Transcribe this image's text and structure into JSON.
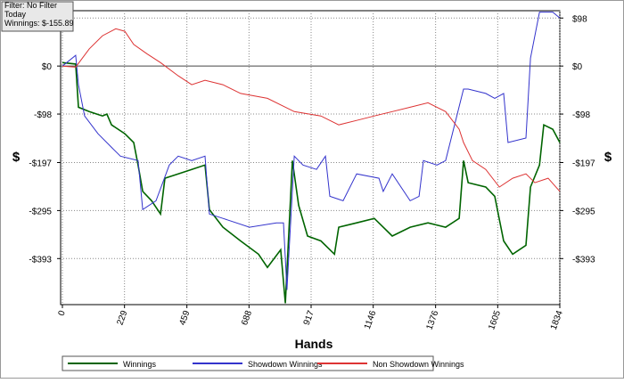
{
  "chart_data": {
    "type": "line",
    "info_box": [
      "Filter: No Filter",
      "Today",
      "Winnings: $-155.89"
    ],
    "x_label": "Hands",
    "y_label": "$",
    "xlim": [
      0,
      1834
    ],
    "xticks": [
      0,
      229,
      459,
      688,
      917,
      1146,
      1376,
      1605,
      1834
    ],
    "ylim": [
      -487,
      113
    ],
    "yticks": [
      {
        "value": 98,
        "label": "$98"
      },
      {
        "value": 0,
        "label": "$0"
      },
      {
        "value": -98,
        "label": "-$98"
      },
      {
        "value": -197,
        "label": "-$197"
      },
      {
        "value": -295,
        "label": "-$295"
      },
      {
        "value": -393,
        "label": "-$393"
      }
    ],
    "grid": true,
    "series": [
      {
        "name": "Winnings",
        "color": "#006400",
        "x": [
          0,
          49,
          59,
          99,
          148,
          164,
          181,
          230,
          263,
          279,
          296,
          329,
          362,
          378,
          427,
          477,
          526,
          542,
          592,
          657,
          723,
          756,
          805,
          822,
          848,
          871,
          904,
          953,
          1003,
          1019,
          1085,
          1150,
          1216,
          1282,
          1348,
          1413,
          1463,
          1479,
          1496,
          1561,
          1594,
          1627,
          1660,
          1709,
          1726,
          1759,
          1775,
          1808,
          1834
        ],
        "values": [
          7,
          4,
          -84,
          -93,
          -102,
          -98,
          -120,
          -138,
          -156,
          -202,
          -256,
          -275,
          -302,
          -229,
          -220,
          -211,
          -202,
          -293,
          -329,
          -357,
          -384,
          -411,
          -375,
          -484,
          -193,
          -284,
          -347,
          -357,
          -384,
          -329,
          -320,
          -311,
          -347,
          -329,
          -320,
          -329,
          -311,
          -193,
          -238,
          -247,
          -266,
          -357,
          -384,
          -366,
          -247,
          -202,
          -120,
          -129,
          -156
        ]
      },
      {
        "name": "Showdown Winnings",
        "color": "#3333cc",
        "x": [
          0,
          49,
          59,
          82,
          131,
          181,
          214,
          279,
          296,
          345,
          394,
          427,
          477,
          526,
          542,
          592,
          690,
          789,
          815,
          828,
          855,
          887,
          937,
          970,
          986,
          1035,
          1085,
          1167,
          1183,
          1216,
          1282,
          1315,
          1331,
          1381,
          1413,
          1479,
          1496,
          1561,
          1594,
          1627,
          1643,
          1709,
          1726,
          1759,
          1808,
          1834
        ],
        "values": [
          0,
          22,
          -38,
          -102,
          -138,
          -166,
          -184,
          -193,
          -293,
          -275,
          -202,
          -184,
          -193,
          -184,
          -302,
          -311,
          -329,
          -320,
          -320,
          -457,
          -184,
          -202,
          -211,
          -184,
          -266,
          -275,
          -220,
          -229,
          -256,
          -220,
          -275,
          -266,
          -193,
          -202,
          -193,
          -47,
          -47,
          -56,
          -66,
          -56,
          -156,
          -147,
          16,
          110,
          110,
          98
        ]
      },
      {
        "name": "Non Showdown Winnings",
        "color": "#dd3333",
        "x": [
          0,
          49,
          99,
          148,
          197,
          230,
          263,
          312,
          362,
          427,
          477,
          526,
          592,
          657,
          756,
          855,
          953,
          1019,
          1085,
          1150,
          1216,
          1282,
          1348,
          1413,
          1463,
          1479,
          1512,
          1561,
          1611,
          1660,
          1709,
          1742,
          1791,
          1834
        ],
        "values": [
          0,
          -2,
          35,
          62,
          76,
          71,
          44,
          25,
          7,
          -20,
          -38,
          -29,
          -38,
          -56,
          -66,
          -93,
          -102,
          -120,
          -111,
          -102,
          -93,
          -84,
          -75,
          -93,
          -129,
          -156,
          -193,
          -211,
          -247,
          -229,
          -220,
          -238,
          -229,
          -256
        ]
      }
    ]
  }
}
